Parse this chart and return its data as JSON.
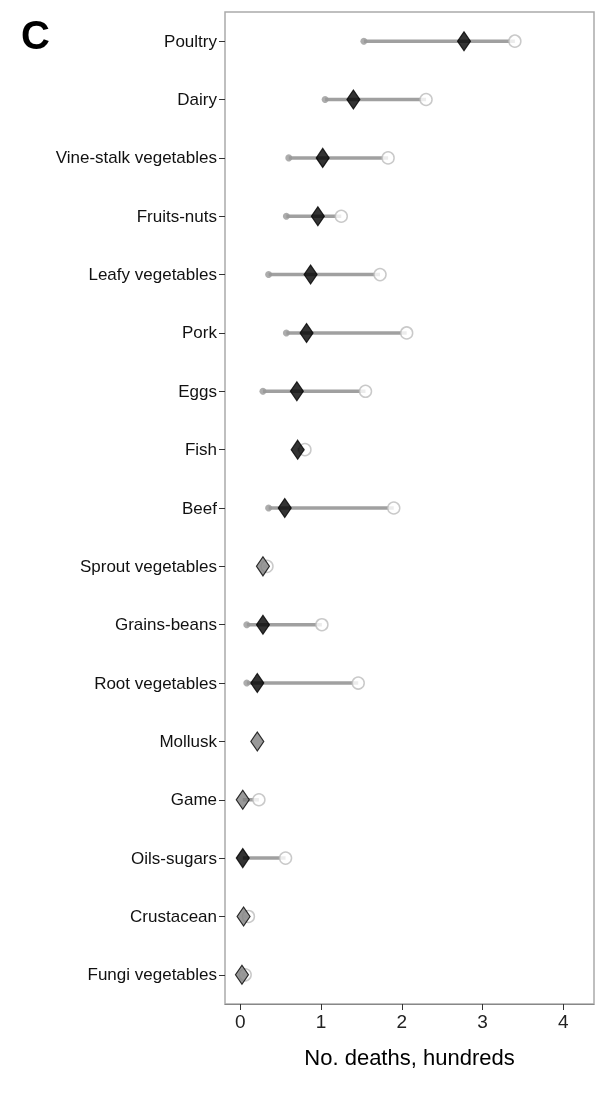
{
  "chart_data": {
    "type": "scatter",
    "orientation": "horizontal",
    "title": "C",
    "xlabel": "No. deaths, hundreds",
    "categories": [
      "Poultry",
      "Dairy",
      "Vine-stalk vegetables",
      "Fruits-nuts",
      "Leafy vegetables",
      "Pork",
      "Eggs",
      "Fish",
      "Beef",
      "Sprout vegetables",
      "Grains-beans",
      "Root vegetables",
      "Mollusk",
      "Game",
      "Oils-sugars",
      "Crustacean",
      "Fungi vegetables"
    ],
    "xlim": [
      -0.19,
      4.38
    ],
    "xticks": [
      0,
      1,
      2,
      3,
      4
    ],
    "grid": false,
    "series": [
      {
        "color": "#999999",
        "marker": "circle",
        "values": [
          1.53,
          1.05,
          0.6,
          0.57,
          0.35,
          0.57,
          0.28,
          null,
          0.35,
          null,
          0.08,
          0.08,
          null,
          null,
          null,
          null,
          null
        ]
      },
      {
        "color": "#bbbbbb",
        "marker": "circle",
        "values": [
          3.4,
          2.3,
          1.83,
          1.25,
          1.73,
          2.06,
          1.55,
          0.8,
          1.9,
          0.33,
          1.01,
          1.46,
          null,
          0.23,
          0.56,
          0.1,
          0.06
        ]
      },
      {
        "color": "#000000",
        "colors": [
          "#000000",
          "#000000",
          "#000000",
          "#000000",
          "#000000",
          "#000000",
          "#000000",
          "#000000",
          "#000000",
          "#808080",
          "#000000",
          "#000000",
          "#808080",
          "#808080",
          "#000000",
          "#808080",
          "#808080"
        ],
        "marker": "diamond",
        "values": [
          2.77,
          1.4,
          1.02,
          0.96,
          0.87,
          0.82,
          0.7,
          0.71,
          0.55,
          0.28,
          0.28,
          0.21,
          0.21,
          0.03,
          0.03,
          0.04,
          0.02
        ]
      }
    ]
  }
}
